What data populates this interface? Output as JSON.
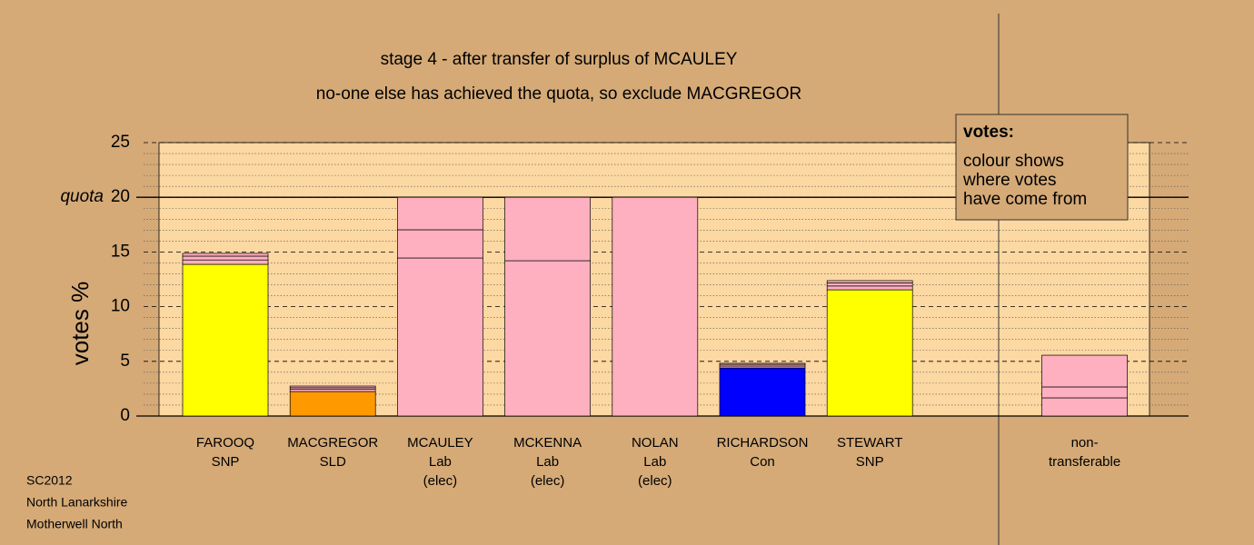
{
  "chart_data": {
    "type": "stacked_bar",
    "title": "stage 4 - after transfer of surplus of MCAULEY",
    "subtitle": "no-one else has achieved the quota, so exclude MACGREGOR",
    "y_label": "votes %",
    "categories": [
      [
        "FAROOQ",
        "SNP"
      ],
      [
        "MACGREGOR",
        "SLD"
      ],
      [
        "MCAULEY",
        "Lab",
        "(elec)"
      ],
      [
        "MCKENNA",
        "Lab",
        "(elec)"
      ],
      [
        "NOLAN",
        "Lab",
        "(elec)"
      ],
      [
        "RICHARDSON",
        "Con"
      ],
      [
        "STEWART",
        "SNP"
      ],
      null,
      [
        "non-",
        "transferable"
      ]
    ],
    "series": [
      {
        "colors": [
          "#ffff00",
          "#ff9900",
          "#ffb0c0",
          "#ffb0c0",
          "#ffb0c0",
          "#0000ff",
          "#ffff00",
          null,
          "#ffb0c0"
        ],
        "values": [
          13.87,
          2.24,
          14.45,
          14.2,
          20,
          4.4,
          11.54,
          null,
          0
        ]
      },
      {
        "color": "#ffb0c0",
        "values": [
          0.4,
          0.2,
          2.58,
          5.8,
          0,
          0.17,
          0.35,
          null,
          1.66
        ]
      },
      {
        "color": "#ffb0c0",
        "values": [
          0.35,
          0.15,
          2.97,
          0,
          0,
          0.15,
          0.29,
          null,
          1.0
        ]
      },
      {
        "color": "#ffb0c0",
        "values": [
          0.25,
          0.15,
          0,
          0,
          0,
          0.1,
          0.2,
          null,
          2.9
        ]
      }
    ],
    "ylim": [
      0,
      25
    ],
    "yticks": [
      0,
      5,
      10,
      15,
      20,
      25
    ],
    "minor_yticks": [
      1,
      2,
      3,
      4,
      6,
      7,
      8,
      9,
      11,
      12,
      13,
      14,
      16,
      17,
      18,
      19,
      21,
      22,
      23,
      24
    ],
    "quota": {
      "label": "quota",
      "value": 20
    },
    "note": {
      "heading": "votes:",
      "lines": [
        "colour shows",
        "where votes",
        "have come from"
      ]
    },
    "footer": [
      "SC2012",
      "North Lanarkshire",
      "Motherwell North"
    ]
  }
}
